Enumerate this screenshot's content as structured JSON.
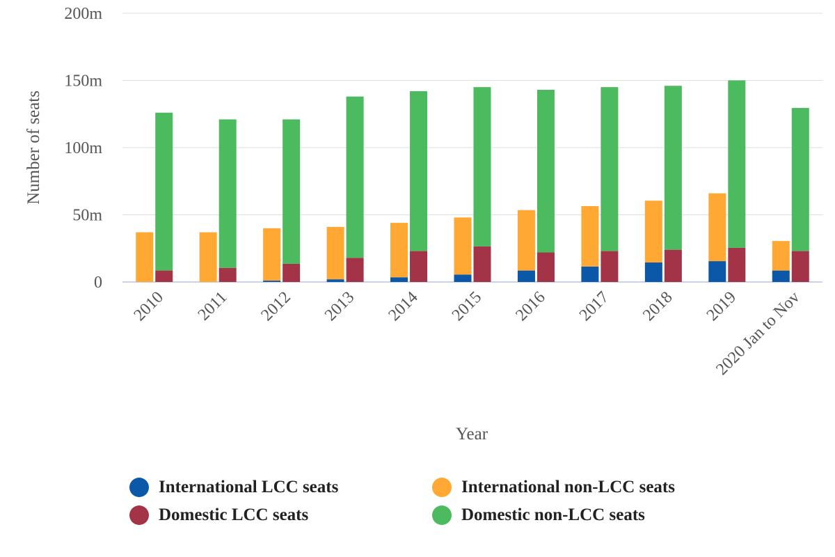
{
  "chart_data": {
    "type": "bar",
    "stacking": "stacked, two columns per category",
    "title": "",
    "xlabel": "Year",
    "ylabel": "Number of seats",
    "ylim": [
      0,
      200
    ],
    "yticks": [
      0,
      50,
      100,
      150,
      200
    ],
    "ytick_labels": [
      "0",
      "50m",
      "100m",
      "150m",
      "200m"
    ],
    "grid": true,
    "legend_position": "bottom",
    "categories": [
      "2010",
      "2011",
      "2012",
      "2013",
      "2014",
      "2015",
      "2016",
      "2017",
      "2018",
      "2019",
      "2020 Jan to Nov"
    ],
    "series": [
      {
        "name": "International LCC seats",
        "stack": "international",
        "color": "#0b57a8",
        "values": [
          0,
          0,
          1,
          2,
          3.5,
          5.5,
          8.5,
          11.5,
          14.5,
          15.5,
          8.5
        ]
      },
      {
        "name": "International non-LCC seats",
        "stack": "international",
        "color": "#ffa833",
        "values": [
          37,
          37,
          39,
          39,
          40.5,
          42.5,
          45,
          45,
          46,
          50.5,
          22
        ]
      },
      {
        "name": "Domestic LCC seats",
        "stack": "domestic",
        "color": "#a33346",
        "values": [
          8.5,
          10.5,
          13.5,
          18,
          23,
          26.5,
          22,
          23,
          24,
          25.5,
          23
        ]
      },
      {
        "name": "Domestic non-LCC seats",
        "stack": "domestic",
        "color": "#4cba5f",
        "values": [
          117.5,
          110.5,
          107.5,
          120,
          119,
          118.5,
          121,
          122,
          122,
          124.5,
          106.5
        ]
      }
    ]
  }
}
